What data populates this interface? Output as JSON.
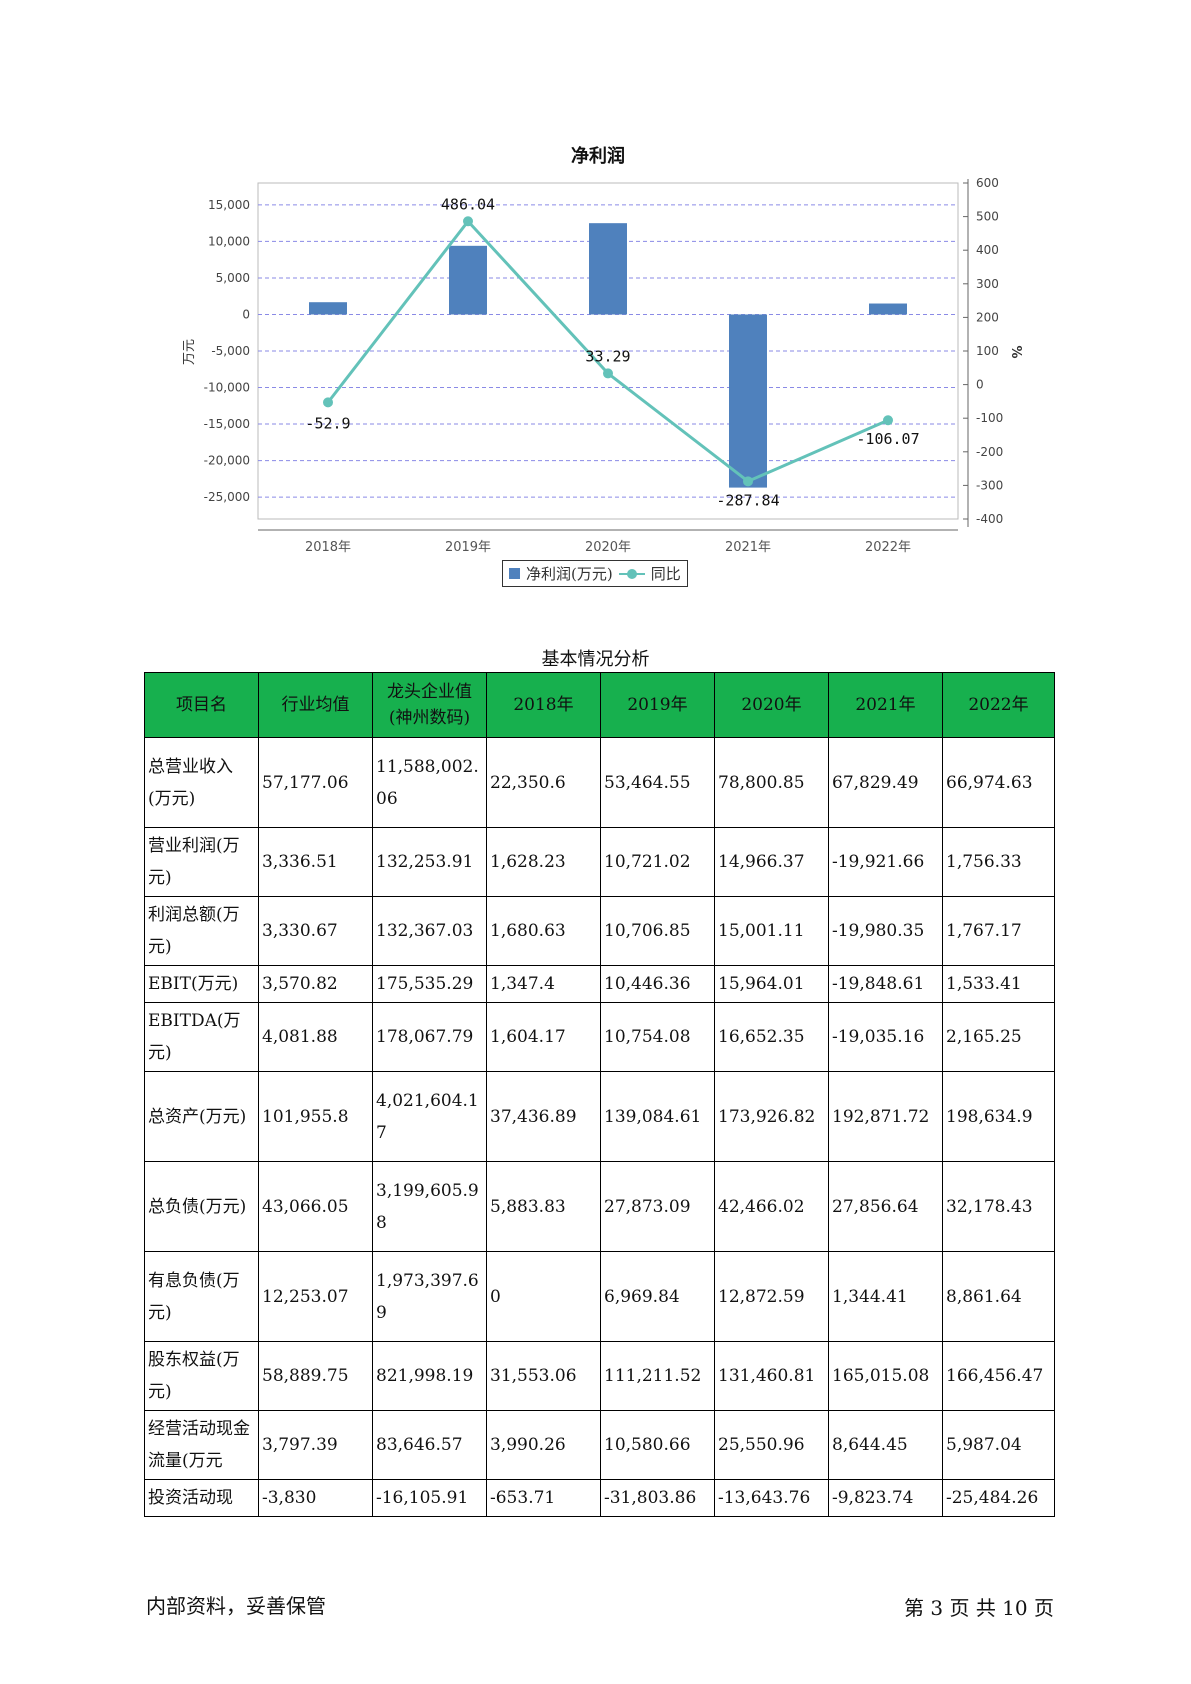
{
  "chart_data": {
    "type": "bar",
    "title": "净利润",
    "categories": [
      "2018年",
      "2019年",
      "2020年",
      "2021年",
      "2022年"
    ],
    "series": [
      {
        "name": "净利润(万元)",
        "type": "bar",
        "axis": "left",
        "color": "#4f81bd",
        "values": [
          1680,
          9400,
          12500,
          -23700,
          1500
        ]
      },
      {
        "name": "同比",
        "type": "line",
        "axis": "right",
        "color": "#63c2b9",
        "values": [
          -52.9,
          486.04,
          33.29,
          -287.84,
          -106.07
        ],
        "labels": [
          "-52.9",
          "486.04",
          "33.29",
          "-287.84",
          "-106.07"
        ]
      }
    ],
    "ylabel": "万元",
    "y2label": "%",
    "ylim": [
      -28000,
      18000
    ],
    "y2lim": [
      -400,
      600
    ],
    "yticks": [
      15000,
      10000,
      5000,
      0,
      -5000,
      -10000,
      -15000,
      -20000,
      -25000
    ],
    "yticklabels": [
      "15,000",
      "10,000",
      "5,000",
      "0",
      "-5,000",
      "-10,000",
      "-15,000",
      "-20,000",
      "-25,000"
    ],
    "y2ticks": [
      600,
      500,
      400,
      300,
      200,
      100,
      0,
      -100,
      -200,
      -300,
      -400
    ],
    "grid": true,
    "legend": "bottom"
  },
  "table": {
    "title": "基本情况分析",
    "headers": [
      "项目名",
      "行业均值",
      "龙头企业值(神州数码)",
      "2018年",
      "2019年",
      "2020年",
      "2021年",
      "2022年"
    ],
    "rows": [
      [
        "总营业收入(万元)",
        "57,177.06",
        "11,588,002.06",
        "22,350.6",
        "53,464.55",
        "78,800.85",
        "67,829.49",
        "66,974.63"
      ],
      [
        "营业利润(万元)",
        "3,336.51",
        "132,253.91",
        "1,628.23",
        "10,721.02",
        "14,966.37",
        "-19,921.66",
        "1,756.33"
      ],
      [
        "利润总额(万元)",
        "3,330.67",
        "132,367.03",
        "1,680.63",
        "10,706.85",
        "15,001.11",
        "-19,980.35",
        "1,767.17"
      ],
      [
        "EBIT(万元)",
        "3,570.82",
        "175,535.29",
        "1,347.4",
        "10,446.36",
        "15,964.01",
        "-19,848.61",
        "1,533.41"
      ],
      [
        "EBITDA(万元)",
        "4,081.88",
        "178,067.79",
        "1,604.17",
        "10,754.08",
        "16,652.35",
        "-19,035.16",
        "2,165.25"
      ],
      [
        "总资产(万元)",
        "101,955.8",
        "4,021,604.17",
        "37,436.89",
        "139,084.61",
        "173,926.82",
        "192,871.72",
        "198,634.9"
      ],
      [
        "总负债(万元)",
        "43,066.05",
        "3,199,605.98",
        "5,883.83",
        "27,873.09",
        "42,466.02",
        "27,856.64",
        "32,178.43"
      ],
      [
        "有息负债(万元)",
        "12,253.07",
        "1,973,397.69",
        "0",
        "6,969.84",
        "12,872.59",
        "1,344.41",
        "8,861.64"
      ],
      [
        "股东权益(万元)",
        "58,889.75",
        "821,998.19",
        "31,553.06",
        "111,211.52",
        "131,460.81",
        "165,015.08",
        "166,456.47"
      ],
      [
        "经营活动现金流量(万元",
        "3,797.39",
        "83,646.57",
        "3,990.26",
        "10,580.66",
        "25,550.96",
        "8,644.45",
        "5,987.04"
      ],
      [
        "投资活动现",
        "-3,830",
        "-16,105.91",
        "-653.71",
        "-31,803.86",
        "-13,643.76",
        "-9,823.74",
        "-25,484.26"
      ]
    ]
  },
  "footer": {
    "left": "内部资料，妥善保管",
    "right": "第 3 页   共 10 页"
  }
}
